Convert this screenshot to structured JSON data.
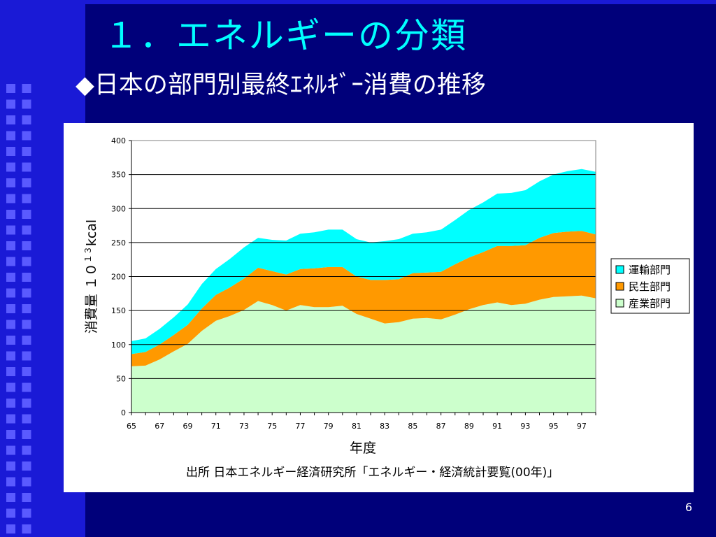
{
  "slide": {
    "title": "１．エネルギーの分類",
    "subtitle": "◆日本の部門別最終ｴﾈﾙｷﾞｰ消費の推移",
    "source": "出所 日本エネルギー経済研究所「エネルギー・経済統計要覧(00年)」",
    "page_number": "6",
    "colors": {
      "background": "#00007a",
      "title": "#00ffff",
      "subtitle": "#ffffff"
    }
  },
  "chart_data": {
    "type": "area",
    "stacked": true,
    "xlabel": "年度",
    "ylabel_main": "消費量 １０",
    "ylabel_sup": "１３",
    "ylabel_unit": "kcal",
    "ylim": [
      0,
      400
    ],
    "yticks": [
      0,
      50,
      100,
      150,
      200,
      250,
      300,
      350,
      400
    ],
    "x": [
      65,
      66,
      67,
      68,
      69,
      70,
      71,
      72,
      73,
      74,
      75,
      76,
      77,
      78,
      79,
      80,
      81,
      82,
      83,
      84,
      85,
      86,
      87,
      88,
      89,
      90,
      91,
      92,
      93,
      94,
      95,
      96,
      97,
      98
    ],
    "xtick_labels": [
      "65",
      "67",
      "69",
      "71",
      "73",
      "75",
      "77",
      "79",
      "81",
      "83",
      "85",
      "87",
      "89",
      "91",
      "93",
      "95",
      "97"
    ],
    "grid": "horizontal",
    "legend_position": "right",
    "legend_order": [
      "運輸部門",
      "民生部門",
      "産業部門"
    ],
    "series": [
      {
        "name": "産業部門",
        "color": "#ccffcc",
        "values": [
          68,
          69,
          78,
          90,
          101,
          120,
          135,
          142,
          151,
          164,
          158,
          150,
          158,
          155,
          155,
          157,
          145,
          138,
          131,
          133,
          138,
          139,
          137,
          144,
          152,
          158,
          162,
          158,
          160,
          166,
          170,
          171,
          172,
          168
        ]
      },
      {
        "name": "民生部門",
        "color": "#ff9900",
        "values": [
          18,
          20,
          22,
          24,
          28,
          33,
          38,
          42,
          46,
          49,
          50,
          53,
          53,
          57,
          59,
          57,
          55,
          57,
          64,
          63,
          67,
          67,
          70,
          74,
          76,
          78,
          83,
          87,
          86,
          91,
          94,
          95,
          95,
          94
        ]
      },
      {
        "name": "運輸部門",
        "color": "#00ffff",
        "values": [
          19,
          20,
          23,
          26,
          30,
          36,
          38,
          42,
          46,
          44,
          46,
          50,
          52,
          53,
          55,
          55,
          55,
          55,
          57,
          59,
          58,
          59,
          62,
          65,
          70,
          73,
          77,
          78,
          81,
          83,
          86,
          89,
          91,
          92
        ]
      }
    ]
  }
}
